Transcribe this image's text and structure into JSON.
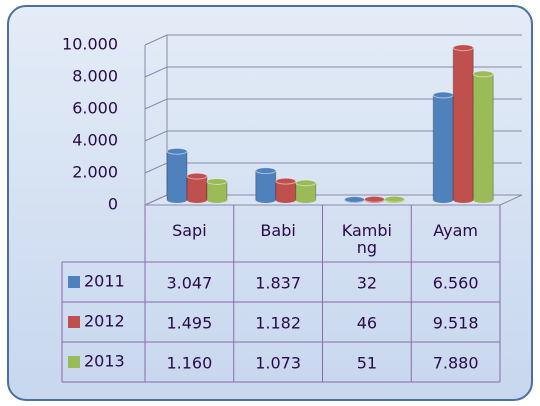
{
  "chart_data": {
    "type": "bar",
    "categories": [
      "Sapi",
      "Babi",
      "Kambing",
      "Ayam"
    ],
    "series": [
      {
        "name": "2011",
        "color": "#4f81bd",
        "values": [
          3047,
          1837,
          32,
          6560
        ],
        "value_labels": [
          "3.047",
          "1.837",
          "32",
          "6.560"
        ]
      },
      {
        "name": "2012",
        "color": "#c0504d",
        "values": [
          1495,
          1182,
          46,
          9518
        ],
        "value_labels": [
          "1.495",
          "1.182",
          "46",
          "9.518"
        ]
      },
      {
        "name": "2013",
        "color": "#9bbb59",
        "values": [
          1160,
          1073,
          51,
          7880
        ],
        "value_labels": [
          "1.160",
          "1.073",
          "51",
          "7.880"
        ]
      }
    ],
    "ylim": [
      0,
      10000
    ],
    "yticks": [
      0,
      {
        "value": 2000,
        "label": "2.000"
      },
      {
        "value": 4000,
        "label": "4.000"
      },
      {
        "value": 6000,
        "label": "6.000"
      },
      {
        "value": 8000,
        "label": "8.000"
      },
      {
        "value": 10000,
        "label": "10.000"
      }
    ],
    "grid": true
  }
}
